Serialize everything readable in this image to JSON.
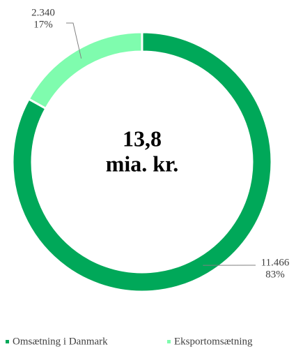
{
  "chart_data": {
    "type": "donut",
    "center_label": [
      "13,8",
      "mia. kr."
    ],
    "categories": [
      "Omsætning i Danmark",
      "Eksportomsætning"
    ],
    "values": [
      11466,
      2340
    ],
    "value_labels": [
      "11.466",
      "2.340"
    ],
    "percents": [
      83,
      17
    ],
    "percent_labels": [
      "83%",
      "17%"
    ],
    "colors": [
      "#00a859",
      "#7ffcae"
    ],
    "legend": "bottom"
  }
}
